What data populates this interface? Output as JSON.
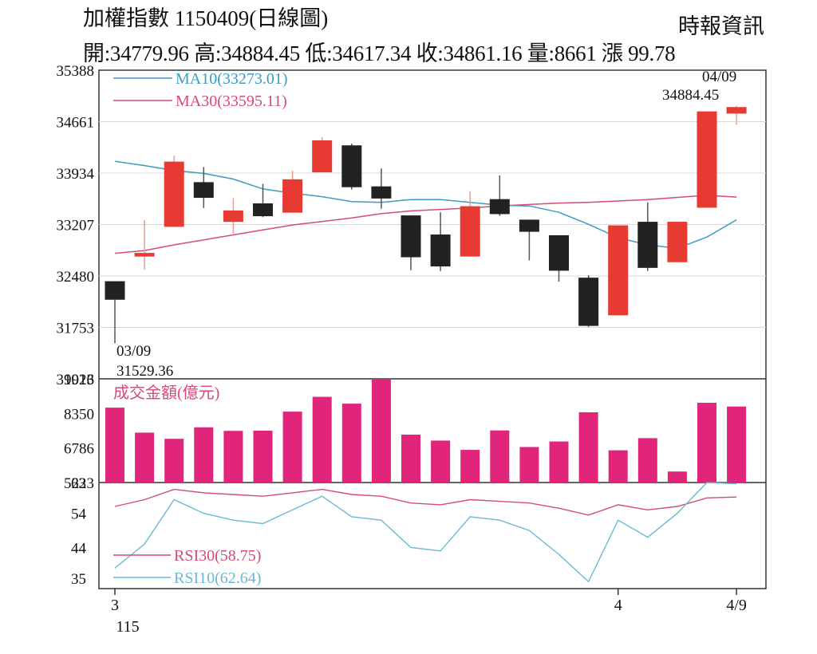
{
  "header": {
    "title": "加權指數 1150409(日線圖)",
    "source": "時報資訊",
    "ohlc_line": "開:34779.96 高:34884.45 低:34617.34 收:34861.16 量:8661 漲 99.78"
  },
  "chart_data": {
    "type": "candlestick",
    "price_panel": {
      "yticks": [
        "35388",
        "34661",
        "33934",
        "33207",
        "32480",
        "31753",
        "31026"
      ],
      "ylim": [
        31026,
        35388
      ],
      "candles": [
        {
          "o": 32400,
          "h": 32400,
          "l": 31529.36,
          "c": 32150
        },
        {
          "o": 32760,
          "h": 33270,
          "l": 32570,
          "c": 32800
        },
        {
          "o": 33180,
          "h": 34180,
          "l": 33180,
          "c": 34090
        },
        {
          "o": 33800,
          "h": 34020,
          "l": 33440,
          "c": 33590
        },
        {
          "o": 33250,
          "h": 33580,
          "l": 33080,
          "c": 33400
        },
        {
          "o": 33500,
          "h": 33780,
          "l": 33310,
          "c": 33330
        },
        {
          "o": 33380,
          "h": 33970,
          "l": 33380,
          "c": 33840
        },
        {
          "o": 33950,
          "h": 34440,
          "l": 33950,
          "c": 34390
        },
        {
          "o": 34320,
          "h": 34350,
          "l": 33700,
          "c": 33740
        },
        {
          "o": 33740,
          "h": 34000,
          "l": 33430,
          "c": 33580
        },
        {
          "o": 33330,
          "h": 33330,
          "l": 32560,
          "c": 32750
        },
        {
          "o": 33060,
          "h": 33380,
          "l": 32550,
          "c": 32620
        },
        {
          "o": 32760,
          "h": 33680,
          "l": 32760,
          "c": 33460
        },
        {
          "o": 33560,
          "h": 33900,
          "l": 33330,
          "c": 33360
        },
        {
          "o": 33270,
          "h": 33270,
          "l": 32700,
          "c": 33110
        },
        {
          "o": 33050,
          "h": 33050,
          "l": 32400,
          "c": 32560
        },
        {
          "o": 32450,
          "h": 32490,
          "l": 31760,
          "c": 31780
        },
        {
          "o": 31930,
          "h": 33190,
          "l": 31930,
          "c": 33190
        },
        {
          "o": 33240,
          "h": 33520,
          "l": 32550,
          "c": 32600
        },
        {
          "o": 32680,
          "h": 33240,
          "l": 32680,
          "c": 33240
        },
        {
          "o": 33450,
          "h": 34800,
          "l": 33450,
          "c": 34800
        },
        {
          "o": 34779.96,
          "h": 34884.45,
          "l": 34617.34,
          "c": 34861.16
        }
      ],
      "ma10": {
        "label": "MA10(33273.01)",
        "color": "#3a9bc3",
        "values": [
          34100,
          34040,
          33970,
          33930,
          33850,
          33710,
          33650,
          33600,
          33530,
          33520,
          33560,
          33560,
          33520,
          33480,
          33470,
          33380,
          33210,
          33020,
          32920,
          32870,
          33030,
          33273.01
        ]
      },
      "ma30": {
        "label": "MA30(33595.11)",
        "color": "#d64a7a",
        "values": [
          32800,
          32840,
          32920,
          32990,
          33060,
          33130,
          33200,
          33250,
          33300,
          33360,
          33400,
          33420,
          33440,
          33470,
          33490,
          33510,
          33520,
          33540,
          33560,
          33590,
          33620,
          33595.11
        ]
      },
      "annotations": [
        {
          "date": "03/09",
          "value": "31529.36"
        },
        {
          "date": "04/09",
          "value": "34884.45"
        }
      ]
    },
    "volume_panel": {
      "label": "成交金額(億元)",
      "yticks": [
        "9913",
        "8350",
        "6786",
        "5223"
      ],
      "ylim": [
        5223,
        9913
      ],
      "values": [
        8610,
        7480,
        7200,
        7720,
        7560,
        7570,
        8430,
        9100,
        8790,
        9913,
        7390,
        7120,
        6700,
        7580,
        6830,
        7080,
        8400,
        6680,
        7230,
        5720,
        8830,
        8661
      ]
    },
    "rsi_panel": {
      "yticks": [
        "63",
        "54",
        "44",
        "35"
      ],
      "ylim": [
        32,
        63
      ],
      "rsi30": {
        "label": "RSI30(58.75)",
        "color": "#d64a7a",
        "values": [
          56,
          58,
          61,
          60,
          59.5,
          59,
          60,
          61,
          59.5,
          59,
          57,
          56.5,
          58,
          57.5,
          57,
          55.5,
          53.5,
          56.5,
          55,
          56,
          58.5,
          58.75
        ]
      },
      "rsi10": {
        "label": "RSI10(62.64)",
        "color": "#6bb9d4",
        "values": [
          38,
          45,
          58,
          54,
          52,
          51,
          55,
          59,
          53,
          52,
          44,
          43,
          53,
          52,
          49,
          42,
          34,
          52,
          47,
          54,
          63,
          62.64
        ]
      }
    },
    "xlabels": [
      {
        "index": 0,
        "text": "3"
      },
      {
        "index": 0,
        "text": "115",
        "row": 2
      },
      {
        "index": 17,
        "text": "4"
      },
      {
        "index": 21,
        "text": "4/9"
      }
    ]
  }
}
